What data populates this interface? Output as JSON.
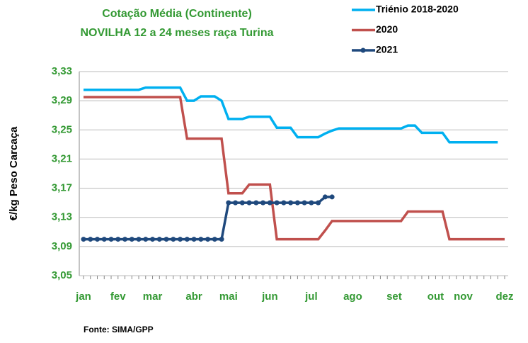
{
  "chart_data": {
    "type": "line",
    "title": "Cotação Média (Continente)",
    "subtitle": "NOVILHA 12 a 24 meses raça Turina",
    "y_label": "€/kg Peso Carcaça",
    "source": "Fonte:  SIMA/GPP",
    "categories": [
      "jan",
      null,
      null,
      null,
      null,
      "fev",
      null,
      null,
      null,
      null,
      "mar",
      null,
      null,
      null,
      null,
      null,
      "abr",
      null,
      null,
      null,
      null,
      "mai",
      null,
      null,
      null,
      null,
      null,
      "jun",
      null,
      null,
      null,
      null,
      null,
      "jul",
      null,
      null,
      null,
      null,
      null,
      "ago",
      null,
      null,
      null,
      null,
      null,
      "set",
      null,
      null,
      null,
      null,
      null,
      "out",
      null,
      null,
      null,
      "nov",
      null,
      null,
      null,
      null,
      null,
      "dez"
    ],
    "series": [
      {
        "name": "Triénio 2018-2020",
        "color": "#00b0f0",
        "marker": false,
        "values": [
          3.305,
          3.305,
          3.305,
          3.305,
          3.305,
          3.305,
          3.305,
          3.305,
          3.305,
          3.308,
          3.308,
          3.308,
          3.308,
          3.308,
          3.308,
          3.29,
          3.29,
          3.296,
          3.296,
          3.296,
          3.29,
          3.265,
          3.265,
          3.265,
          3.268,
          3.268,
          3.268,
          3.268,
          3.253,
          3.253,
          3.253,
          3.24,
          3.24,
          3.24,
          3.24,
          3.245,
          3.249,
          3.252,
          3.252,
          3.252,
          3.252,
          3.252,
          3.252,
          3.252,
          3.252,
          3.252,
          3.252,
          3.256,
          3.256,
          3.246,
          3.246,
          3.246,
          3.246,
          3.233,
          3.233,
          3.233,
          3.233,
          3.233,
          3.233,
          3.233,
          3.233,
          null
        ]
      },
      {
        "name": "2020",
        "color": "#c0504d",
        "marker": false,
        "values": [
          3.295,
          3.295,
          3.295,
          3.295,
          3.295,
          3.295,
          3.295,
          3.295,
          3.295,
          3.295,
          3.295,
          3.295,
          3.295,
          3.295,
          3.295,
          3.238,
          3.238,
          3.238,
          3.238,
          3.238,
          3.238,
          3.163,
          3.163,
          3.163,
          3.175,
          3.175,
          3.175,
          3.175,
          3.1,
          3.1,
          3.1,
          3.1,
          3.1,
          3.1,
          3.1,
          3.112,
          3.125,
          3.125,
          3.125,
          3.125,
          3.125,
          3.125,
          3.125,
          3.125,
          3.125,
          3.125,
          3.125,
          3.138,
          3.138,
          3.138,
          3.138,
          3.138,
          3.138,
          3.1,
          3.1,
          3.1,
          3.1,
          3.1,
          3.1,
          3.1,
          3.1,
          3.1
        ]
      },
      {
        "name": "2021",
        "color": "#1f497d",
        "marker": true,
        "values": [
          3.1,
          3.1,
          3.1,
          3.1,
          3.1,
          3.1,
          3.1,
          3.1,
          3.1,
          3.1,
          3.1,
          3.1,
          3.1,
          3.1,
          3.1,
          3.1,
          3.1,
          3.1,
          3.1,
          3.1,
          3.1,
          3.15,
          3.15,
          3.15,
          3.15,
          3.15,
          3.15,
          3.15,
          3.15,
          3.15,
          3.15,
          3.15,
          3.15,
          3.15,
          3.15,
          3.158,
          3.158,
          null,
          null,
          null,
          null,
          null,
          null,
          null,
          null,
          null,
          null,
          null,
          null,
          null,
          null,
          null,
          null,
          null,
          null,
          null,
          null,
          null,
          null,
          null,
          null,
          null
        ]
      }
    ],
    "ylim": [
      3.05,
      3.33
    ],
    "yticks": [
      {
        "value": 3.05,
        "label": "3,05"
      },
      {
        "value": 3.09,
        "label": "3,09"
      },
      {
        "value": 3.13,
        "label": "3,13"
      },
      {
        "value": 3.17,
        "label": "3,17"
      },
      {
        "value": 3.21,
        "label": "3,21"
      },
      {
        "value": 3.25,
        "label": "3,25"
      },
      {
        "value": 3.29,
        "label": "3,29"
      },
      {
        "value": 3.33,
        "label": "3,33"
      }
    ],
    "grid": true
  }
}
